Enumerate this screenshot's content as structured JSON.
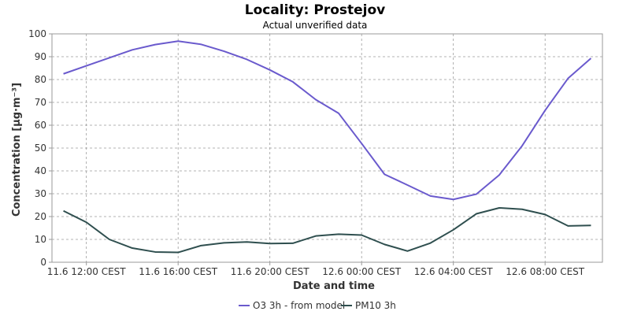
{
  "chart_data": {
    "type": "line",
    "title": "Locality: Prostejov",
    "subtitle": "Actual unverified data",
    "xlabel": "Date and time",
    "ylabel": "Concentration [µg·m⁻³]",
    "ylim": [
      0,
      100
    ],
    "y_ticks": [
      0,
      10,
      20,
      30,
      40,
      50,
      60,
      70,
      80,
      90,
      100
    ],
    "x_range": [
      "2024-06-11T10:30",
      "2024-06-12T10:30"
    ],
    "x_tick_values": [
      "2024-06-11T12:00",
      "2024-06-11T16:00",
      "2024-06-11T20:00",
      "2024-06-12T00:00",
      "2024-06-12T04:00",
      "2024-06-12T08:00"
    ],
    "x_tick_labels": [
      "11.6 12:00 CEST",
      "11.6 16:00 CEST",
      "11.6 20:00 CEST",
      "12.6 00:00 CEST",
      "12.6 04:00 CEST",
      "12.6 08:00 CEST"
    ],
    "x": [
      "2024-06-11T11:00",
      "2024-06-11T12:00",
      "2024-06-11T13:00",
      "2024-06-11T14:00",
      "2024-06-11T15:00",
      "2024-06-11T16:00",
      "2024-06-11T17:00",
      "2024-06-11T18:00",
      "2024-06-11T19:00",
      "2024-06-11T20:00",
      "2024-06-11T21:00",
      "2024-06-11T22:00",
      "2024-06-11T23:00",
      "2024-06-12T00:00",
      "2024-06-12T01:00",
      "2024-06-12T02:00",
      "2024-06-12T03:00",
      "2024-06-12T04:00",
      "2024-06-12T05:00",
      "2024-06-12T06:00",
      "2024-06-12T07:00",
      "2024-06-12T08:00",
      "2024-06-12T09:00",
      "2024-06-12T10:00"
    ],
    "series": [
      {
        "name": "O3 3h - from model",
        "color": "#6a5acd",
        "values": [
          82.5,
          86,
          89.5,
          93,
          95.3,
          96.8,
          95.4,
          92.4,
          88.8,
          84.2,
          79,
          71.2,
          65.2,
          52,
          38.5,
          33.8,
          29,
          27.5,
          29.8,
          38.2,
          51,
          66.5,
          80.5,
          89.3
        ]
      },
      {
        "name": "PM10 3h",
        "color": "#2f4f4f",
        "values": [
          22.5,
          17.5,
          10,
          6.2,
          4.5,
          4.3,
          7.3,
          8.5,
          8.9,
          8.2,
          8.3,
          11.5,
          12.3,
          11.9,
          7.8,
          4.9,
          8.4,
          14.2,
          21.2,
          23.8,
          23.2,
          20.9,
          15.9,
          16.1
        ]
      }
    ],
    "grid": true,
    "legend_position": "bottom-center"
  }
}
